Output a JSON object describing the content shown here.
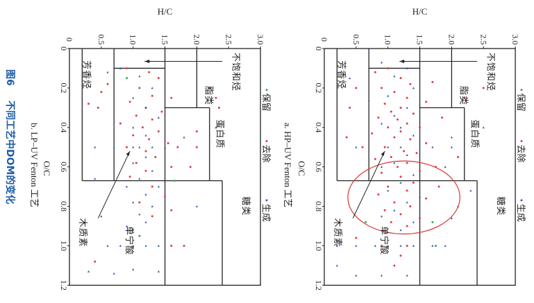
{
  "caption": {
    "figure_no": "图6",
    "title": "不同工艺中DOM的变化"
  },
  "colors": {
    "retained": "#3aa84a",
    "removed": "#e23a45",
    "generated": "#2f5fb0",
    "ellipse": "#e04040",
    "caption": "#1f5da6"
  },
  "chart_data": [
    {
      "type": "scatter",
      "subtitle": "a. HP–UV Fenton 工艺",
      "xlabel": "O/C",
      "ylabel": "H/C",
      "xlim": [
        0,
        1.2
      ],
      "ylim": [
        0,
        3.0
      ],
      "xticks": [
        "0",
        "0.2",
        "0.4",
        "0.6",
        "0.8",
        "1.0",
        "1.2"
      ],
      "yticks": [
        "0.5",
        "1.0",
        "1.5",
        "2.0",
        "2.5",
        "3.0"
      ],
      "legend": [
        "保留",
        "去除",
        "生成"
      ],
      "regions": [
        "不饱和烃",
        "脂类",
        "蛋白质",
        "糖类",
        "芳香烃",
        "木质素",
        "单宁酸"
      ],
      "ellipse": {
        "center_oc": 0.755,
        "center_hc": 1.25,
        "half_width_oc": 0.185,
        "half_height_hc": 0.88
      },
      "series": [
        {
          "name": "去除",
          "points": [
            [
              0.1,
              1.0
            ],
            [
              0.12,
              0.8
            ],
            [
              0.15,
              1.2
            ],
            [
              0.18,
              1.35
            ],
            [
              0.2,
              0.9
            ],
            [
              0.22,
              1.1
            ],
            [
              0.25,
              1.3
            ],
            [
              0.27,
              1.6
            ],
            [
              0.28,
              0.95
            ],
            [
              0.3,
              1.2
            ],
            [
              0.32,
              1.05
            ],
            [
              0.33,
              1.4
            ],
            [
              0.35,
              0.85
            ],
            [
              0.36,
              1.15
            ],
            [
              0.38,
              1.3
            ],
            [
              0.4,
              1.0
            ],
            [
              0.4,
              1.5
            ],
            [
              0.42,
              1.2
            ],
            [
              0.43,
              0.75
            ],
            [
              0.45,
              1.1
            ],
            [
              0.46,
              1.35
            ],
            [
              0.48,
              1.6
            ],
            [
              0.5,
              0.95
            ],
            [
              0.52,
              1.25
            ],
            [
              0.53,
              1.45
            ],
            [
              0.55,
              1.05
            ],
            [
              0.56,
              0.8
            ],
            [
              0.58,
              1.3
            ],
            [
              0.6,
              1.15
            ],
            [
              0.62,
              1.5
            ],
            [
              0.63,
              0.9
            ],
            [
              0.65,
              1.2
            ],
            [
              0.68,
              1.4
            ],
            [
              0.7,
              1.0
            ],
            [
              0.72,
              1.3
            ],
            [
              0.74,
              0.85
            ],
            [
              0.76,
              1.6
            ],
            [
              0.78,
              1.1
            ],
            [
              0.8,
              1.35
            ],
            [
              0.82,
              0.95
            ],
            [
              0.84,
              1.2
            ],
            [
              0.86,
              1.5
            ],
            [
              0.88,
              1.05
            ],
            [
              0.9,
              1.3
            ],
            [
              0.3,
              0.4
            ],
            [
              0.45,
              0.35
            ],
            [
              0.5,
              0.6
            ],
            [
              0.2,
              0.5
            ],
            [
              0.35,
              1.85
            ],
            [
              0.25,
              2.2
            ],
            [
              0.2,
              2.5
            ],
            [
              0.55,
              2.1
            ],
            [
              0.7,
              1.8
            ],
            [
              1.0,
              1.3
            ],
            [
              1.0,
              0.9
            ],
            [
              1.05,
              1.2
            ],
            [
              1.1,
              1.1
            ],
            [
              0.96,
              0.5
            ],
            [
              0.17,
              1.7
            ],
            [
              0.6,
              1.75
            ]
          ]
        },
        {
          "name": "生成",
          "points": [
            [
              0.07,
              0.9
            ],
            [
              0.1,
              1.3
            ],
            [
              0.14,
              1.1
            ],
            [
              0.2,
              1.4
            ],
            [
              0.24,
              1.0
            ],
            [
              0.3,
              1.3
            ],
            [
              0.34,
              1.1
            ],
            [
              0.38,
              0.9
            ],
            [
              0.4,
              1.2
            ],
            [
              0.44,
              1.4
            ],
            [
              0.5,
              1.0
            ],
            [
              0.5,
              1.2
            ],
            [
              0.5,
              0.5
            ],
            [
              0.5,
              2.0
            ],
            [
              0.5,
              1.7
            ],
            [
              0.54,
              1.3
            ],
            [
              0.58,
              1.1
            ],
            [
              0.6,
              0.9
            ],
            [
              0.64,
              1.4
            ],
            [
              0.68,
              1.2
            ],
            [
              0.72,
              1.0
            ],
            [
              0.75,
              1.5
            ],
            [
              0.78,
              1.3
            ],
            [
              0.82,
              1.1
            ],
            [
              0.85,
              0.9
            ],
            [
              0.88,
              1.4
            ],
            [
              0.92,
              1.2
            ],
            [
              1.0,
              0.2
            ],
            [
              1.0,
              0.5
            ],
            [
              1.0,
              0.8
            ],
            [
              1.0,
              1.0
            ],
            [
              1.0,
              1.2
            ],
            [
              1.0,
              1.4
            ],
            [
              1.0,
              1.7
            ],
            [
              1.0,
              1.9
            ],
            [
              1.1,
              0.2
            ],
            [
              1.15,
              0.9
            ],
            [
              1.15,
              1.3
            ],
            [
              1.15,
              0.5
            ],
            [
              0.15,
              0.4
            ],
            [
              0.26,
              0.7
            ],
            [
              0.8,
              2.1
            ],
            [
              0.72,
              2.3
            ],
            [
              0.86,
              2.0
            ],
            [
              0.45,
              2.0
            ],
            [
              0.6,
              1.9
            ],
            [
              0.4,
              2.5
            ]
          ]
        },
        {
          "name": "保留",
          "points": [
            [
              0.88,
              0.65
            ],
            [
              0.88,
              1.7
            ],
            [
              1.0,
              1.75
            ]
          ]
        }
      ]
    },
    {
      "type": "scatter",
      "subtitle": "b. LP–UV Fenton 工艺",
      "xlabel": "O/C",
      "ylabel": "H/C",
      "xlim": [
        0,
        1.2
      ],
      "ylim": [
        0,
        3.0
      ],
      "xticks": [
        "0",
        "0.2",
        "0.4",
        "0.6",
        "0.8",
        "1.0",
        "1.2"
      ],
      "yticks": [
        "0.5",
        "1.0",
        "1.5",
        "2.0",
        "2.5",
        "3.0"
      ],
      "legend": [
        "保留",
        "去除",
        "生成"
      ],
      "regions": [
        "不饱和烃",
        "脂类",
        "蛋白质",
        "糖类",
        "芳香烃",
        "木质素",
        "单宁酸"
      ],
      "series": [
        {
          "name": "去除",
          "points": [
            [
              0.1,
              0.9
            ],
            [
              0.12,
              1.25
            ],
            [
              0.15,
              1.4
            ],
            [
              0.18,
              0.6
            ],
            [
              0.2,
              1.1
            ],
            [
              0.22,
              0.5
            ],
            [
              0.24,
              1.3
            ],
            [
              0.25,
              1.6
            ],
            [
              0.27,
              0.95
            ],
            [
              0.3,
              1.2
            ],
            [
              0.3,
              0.45
            ],
            [
              0.32,
              1.45
            ],
            [
              0.34,
              1.05
            ],
            [
              0.36,
              1.3
            ],
            [
              0.38,
              0.8
            ],
            [
              0.4,
              1.15
            ],
            [
              0.42,
              1.4
            ],
            [
              0.44,
              1.0
            ],
            [
              0.46,
              1.25
            ],
            [
              0.48,
              1.55
            ],
            [
              0.5,
              0.9
            ],
            [
              0.5,
              1.7
            ],
            [
              0.5,
              2.0
            ],
            [
              0.52,
              1.2
            ],
            [
              0.55,
              1.35
            ],
            [
              0.58,
              1.05
            ],
            [
              0.6,
              1.6
            ],
            [
              0.62,
              1.2
            ],
            [
              0.65,
              0.95
            ],
            [
              0.7,
              1.3
            ],
            [
              0.75,
              1.5
            ],
            [
              0.78,
              1.1
            ],
            [
              0.82,
              1.6
            ],
            [
              0.85,
              1.3
            ],
            [
              1.0,
              1.6
            ],
            [
              1.0,
              1.8
            ],
            [
              1.08,
              0.4
            ],
            [
              0.2,
              2.2
            ],
            [
              0.25,
              2.3
            ],
            [
              0.3,
              2.35
            ],
            [
              0.42,
              2.0
            ],
            [
              0.6,
              1.9
            ],
            [
              0.28,
              0.3
            ]
          ]
        },
        {
          "name": "生成",
          "points": [
            [
              0.1,
              0.8
            ],
            [
              0.14,
              1.1
            ],
            [
              0.2,
              1.3
            ],
            [
              0.25,
              1.0
            ],
            [
              0.3,
              1.2
            ],
            [
              0.35,
              1.4
            ],
            [
              0.4,
              1.0
            ],
            [
              0.44,
              1.2
            ],
            [
              0.5,
              0.4
            ],
            [
              0.5,
              0.7
            ],
            [
              0.5,
              1.0
            ],
            [
              0.5,
              1.1
            ],
            [
              0.5,
              1.3
            ],
            [
              0.5,
              1.5
            ],
            [
              0.55,
              1.2
            ],
            [
              0.58,
              1.0
            ],
            [
              0.62,
              1.3
            ],
            [
              0.66,
              1.1
            ],
            [
              0.7,
              0.9
            ],
            [
              0.7,
              1.4
            ],
            [
              0.74,
              1.2
            ],
            [
              0.78,
              1.0
            ],
            [
              0.8,
              1.3
            ],
            [
              0.84,
              1.1
            ],
            [
              0.88,
              1.2
            ],
            [
              0.9,
              0.9
            ],
            [
              0.92,
              1.0
            ],
            [
              1.0,
              0.6
            ],
            [
              1.0,
              0.8
            ],
            [
              1.0,
              1.0
            ],
            [
              1.0,
              1.2
            ],
            [
              1.0,
              1.4
            ],
            [
              1.13,
              0.3
            ],
            [
              1.14,
              0.7
            ],
            [
              1.12,
              1.0
            ],
            [
              1.13,
              1.4
            ],
            [
              0.4,
              2.3
            ],
            [
              0.45,
              1.8
            ],
            [
              0.8,
              2.0
            ],
            [
              0.12,
              0.6
            ],
            [
              0.66,
              0.4
            ],
            [
              0.85,
              0.5
            ]
          ]
        },
        {
          "name": "保留",
          "points": [
            [
              0.15,
              0.9
            ],
            [
              0.2,
              1.1
            ],
            [
              0.67,
              1.65
            ],
            [
              0.95,
              1.1
            ]
          ]
        }
      ]
    }
  ]
}
